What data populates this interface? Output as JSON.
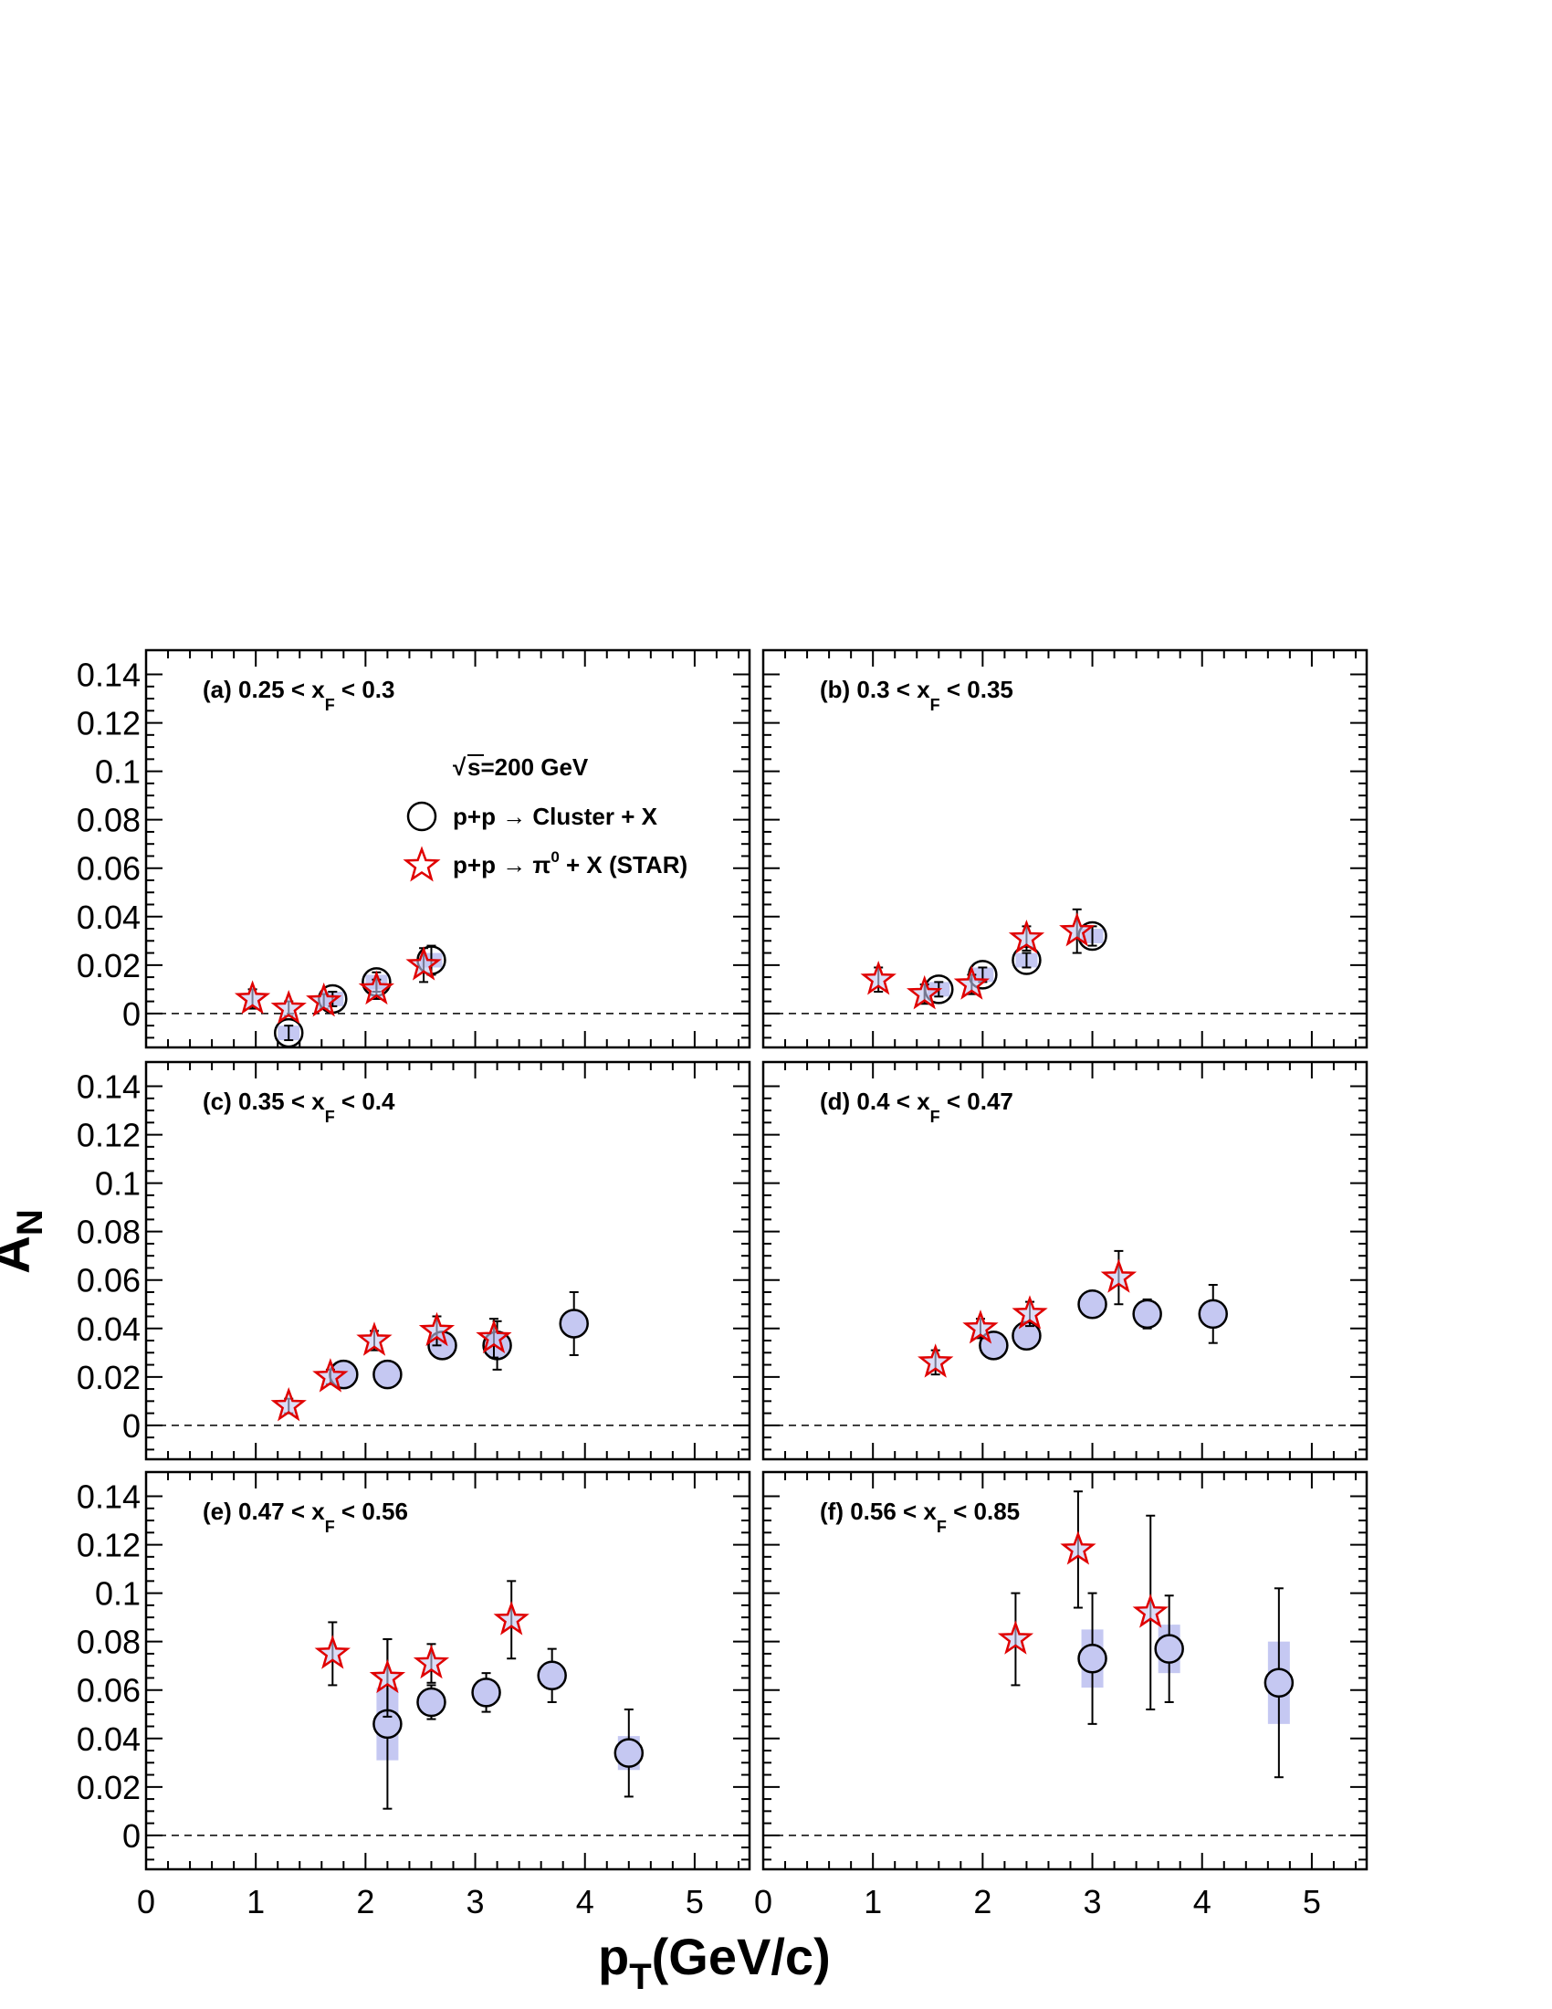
{
  "chart_data": {
    "type": "scatter",
    "layout": "3x2 panels",
    "xlabel": "p_T(GeV/c)",
    "ylabel": "A_N",
    "xlim": [
      0,
      5.5
    ],
    "ylim": [
      -0.014,
      0.15
    ],
    "x_ticks": [
      "0",
      "1",
      "2",
      "3",
      "4",
      "5"
    ],
    "y_ticks": [
      "0",
      "0.02",
      "0.04",
      "0.06",
      "0.08",
      "0.1",
      "0.12",
      "0.14"
    ],
    "zero_line": "dashed",
    "legend": {
      "energy": "s=200 GeV",
      "cluster": "p+p → Cluster + X",
      "pi0": "p+p → π",
      "pi0_super": "0",
      "pi0_tail": " + X (STAR)"
    },
    "panels": [
      {
        "tag": "(a)",
        "lo": "0.25 < x",
        "sub": "F",
        "hi": " < 0.3",
        "cluster": [
          {
            "x": 1.3,
            "y": -0.008,
            "err": 0.003,
            "sys": 0.003
          },
          {
            "x": 1.7,
            "y": 0.006,
            "err": 0.003,
            "sys": 0.003
          },
          {
            "x": 2.1,
            "y": 0.013,
            "err": 0.004,
            "sys": 0.003
          },
          {
            "x": 2.6,
            "y": 0.022,
            "err": 0.006,
            "sys": 0.003
          }
        ],
        "star": [
          {
            "x": 0.97,
            "y": 0.006,
            "err": 0.004
          },
          {
            "x": 1.3,
            "y": 0.002,
            "err": 0.003
          },
          {
            "x": 1.62,
            "y": 0.005,
            "err": 0.003
          },
          {
            "x": 2.1,
            "y": 0.01,
            "err": 0.004
          },
          {
            "x": 2.53,
            "y": 0.02,
            "err": 0.007
          }
        ]
      },
      {
        "tag": "(b)",
        "lo": "0.3 < x",
        "sub": "F",
        "hi": " < 0.35",
        "cluster": [
          {
            "x": 1.6,
            "y": 0.01,
            "err": 0.003,
            "sys": 0.003
          },
          {
            "x": 2.0,
            "y": 0.016,
            "err": 0.003,
            "sys": 0.003
          },
          {
            "x": 2.4,
            "y": 0.022,
            "err": 0.003,
            "sys": 0.003
          },
          {
            "x": 3.0,
            "y": 0.032,
            "err": 0.004,
            "sys": 0.003
          }
        ],
        "star": [
          {
            "x": 1.05,
            "y": 0.014,
            "err": 0.005
          },
          {
            "x": 1.47,
            "y": 0.008,
            "err": 0.004
          },
          {
            "x": 1.9,
            "y": 0.012,
            "err": 0.004
          },
          {
            "x": 2.4,
            "y": 0.031,
            "err": 0.005
          },
          {
            "x": 2.86,
            "y": 0.034,
            "err": 0.009
          }
        ]
      },
      {
        "tag": "(c)",
        "lo": "0.35 < x",
        "sub": "F",
        "hi": " < 0.4",
        "cluster": [
          {
            "x": 1.8,
            "y": 0.021,
            "err": 0.003,
            "sys": 0.002
          },
          {
            "x": 2.2,
            "y": 0.021,
            "err": 0.003,
            "sys": 0.002
          },
          {
            "x": 2.7,
            "y": 0.033,
            "err": 0.004,
            "sys": 0.003
          },
          {
            "x": 3.2,
            "y": 0.033,
            "err": 0.01,
            "sys": 0.003
          },
          {
            "x": 3.9,
            "y": 0.042,
            "err": 0.013,
            "sys": 0.003
          }
        ],
        "star": [
          {
            "x": 1.3,
            "y": 0.008,
            "err": 0.003
          },
          {
            "x": 1.68,
            "y": 0.02,
            "err": 0.003
          },
          {
            "x": 2.08,
            "y": 0.035,
            "err": 0.004
          },
          {
            "x": 2.65,
            "y": 0.039,
            "err": 0.006
          },
          {
            "x": 3.17,
            "y": 0.036,
            "err": 0.008
          }
        ]
      },
      {
        "tag": "(d)",
        "lo": "0.4 < x",
        "sub": "F",
        "hi": " < 0.47",
        "cluster": [
          {
            "x": 2.1,
            "y": 0.033,
            "err": 0.003,
            "sys": 0.002
          },
          {
            "x": 2.4,
            "y": 0.037,
            "err": 0.003,
            "sys": 0.002
          },
          {
            "x": 3.0,
            "y": 0.05,
            "err": 0.003,
            "sys": 0.003
          },
          {
            "x": 3.5,
            "y": 0.046,
            "err": 0.006,
            "sys": 0.003
          },
          {
            "x": 4.1,
            "y": 0.046,
            "err": 0.012,
            "sys": 0.003
          }
        ],
        "star": [
          {
            "x": 1.57,
            "y": 0.026,
            "err": 0.005
          },
          {
            "x": 1.98,
            "y": 0.04,
            "err": 0.004
          },
          {
            "x": 2.43,
            "y": 0.046,
            "err": 0.005
          },
          {
            "x": 3.24,
            "y": 0.061,
            "err": 0.011
          }
        ]
      },
      {
        "tag": "(e)",
        "lo": "0.47 < x",
        "sub": "F",
        "hi": " < 0.56",
        "cluster": [
          {
            "x": 2.2,
            "y": 0.046,
            "err": 0.035,
            "sys": 0.015
          },
          {
            "x": 2.6,
            "y": 0.055,
            "err": 0.007,
            "sys": 0.003
          },
          {
            "x": 3.1,
            "y": 0.059,
            "err": 0.008,
            "sys": 0.003
          },
          {
            "x": 3.7,
            "y": 0.066,
            "err": 0.011,
            "sys": 0.003
          },
          {
            "x": 4.4,
            "y": 0.034,
            "err": 0.018,
            "sys": 0.007
          }
        ],
        "star": [
          {
            "x": 1.7,
            "y": 0.075,
            "err": 0.013
          },
          {
            "x": 2.2,
            "y": 0.065,
            "err": 0.016
          },
          {
            "x": 2.6,
            "y": 0.071,
            "err": 0.008
          },
          {
            "x": 3.33,
            "y": 0.089,
            "err": 0.016
          }
        ]
      },
      {
        "tag": "(f)",
        "lo": "0.56 < x",
        "sub": "F",
        "hi": " < 0.85",
        "cluster": [
          {
            "x": 3.0,
            "y": 0.073,
            "err": 0.027,
            "sys": 0.012
          },
          {
            "x": 3.7,
            "y": 0.077,
            "err": 0.022,
            "sys": 0.01
          },
          {
            "x": 4.7,
            "y": 0.063,
            "err": 0.039,
            "sys": 0.017
          }
        ],
        "star": [
          {
            "x": 2.3,
            "y": 0.081,
            "err": 0.019
          },
          {
            "x": 2.87,
            "y": 0.118,
            "err": 0.024
          },
          {
            "x": 3.53,
            "y": 0.092,
            "err": 0.04
          }
        ]
      }
    ]
  }
}
